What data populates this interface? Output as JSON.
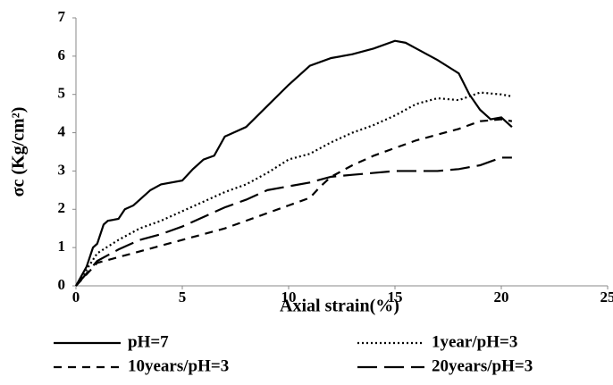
{
  "chart_data": {
    "type": "line",
    "xlabel": "Axial strain(%)",
    "ylabel": "σc (Kg/cm²)",
    "xlim": [
      0,
      25
    ],
    "xticks": [
      0,
      5,
      10,
      15,
      20,
      25
    ],
    "ylim": [
      0,
      7
    ],
    "yticks": [
      0,
      1,
      2,
      3,
      4,
      5,
      6,
      7
    ],
    "grid": false,
    "legend": "bottom",
    "series": [
      {
        "name": "pH=7",
        "color": "#000000",
        "dash": "solid",
        "x": [
          0,
          0.5,
          0.8,
          1,
          1.3,
          1.5,
          2,
          2.3,
          2.7,
          3,
          3.5,
          4,
          5,
          5.5,
          6,
          6.5,
          7,
          8,
          9,
          10,
          10.5,
          11,
          12,
          13,
          14,
          15,
          15.5,
          16,
          17,
          18,
          18.5,
          19,
          19.5,
          20,
          20.5
        ],
        "values": [
          0,
          0.5,
          1.0,
          1.1,
          1.6,
          1.7,
          1.75,
          2.0,
          2.1,
          2.25,
          2.5,
          2.65,
          2.75,
          3.05,
          3.3,
          3.4,
          3.9,
          4.15,
          4.7,
          5.25,
          5.5,
          5.75,
          5.95,
          6.05,
          6.2,
          6.4,
          6.35,
          6.2,
          5.9,
          5.55,
          5.0,
          4.6,
          4.35,
          4.4,
          4.15
        ]
      },
      {
        "name": "1year/pH=3",
        "color": "#000000",
        "dash": "dotted",
        "x": [
          0,
          1,
          2,
          3,
          4,
          5,
          6,
          7,
          8,
          9,
          10,
          11,
          12,
          13,
          14,
          15,
          16,
          17,
          18,
          19,
          20,
          20.5
        ],
        "values": [
          0,
          0.85,
          1.2,
          1.5,
          1.7,
          1.95,
          2.2,
          2.45,
          2.65,
          2.95,
          3.3,
          3.45,
          3.75,
          4.0,
          4.2,
          4.45,
          4.75,
          4.9,
          4.85,
          5.05,
          5.0,
          4.95
        ]
      },
      {
        "name": "10years/pH=3",
        "color": "#000000",
        "dash": "dashed",
        "x": [
          0,
          1,
          2,
          3,
          4,
          5,
          6,
          7,
          8,
          9,
          10,
          11,
          11.5,
          12,
          13,
          14,
          15,
          16,
          17,
          18,
          19,
          20,
          20.5
        ],
        "values": [
          0,
          0.6,
          0.75,
          0.9,
          1.05,
          1.2,
          1.35,
          1.5,
          1.7,
          1.9,
          2.1,
          2.3,
          2.6,
          2.85,
          3.15,
          3.4,
          3.6,
          3.8,
          3.95,
          4.1,
          4.3,
          4.35,
          4.3
        ]
      },
      {
        "name": "20years/pH=3",
        "color": "#000000",
        "dash": "longdash",
        "x": [
          0,
          1,
          2,
          3,
          4,
          5,
          6,
          7,
          8,
          9,
          10,
          11,
          12,
          13,
          14,
          15,
          16,
          17,
          18,
          19,
          20,
          20.5
        ],
        "values": [
          0,
          0.65,
          0.95,
          1.2,
          1.35,
          1.55,
          1.8,
          2.05,
          2.25,
          2.5,
          2.6,
          2.7,
          2.85,
          2.9,
          2.95,
          3.0,
          3.0,
          3.0,
          3.05,
          3.15,
          3.35,
          3.35
        ]
      }
    ]
  }
}
